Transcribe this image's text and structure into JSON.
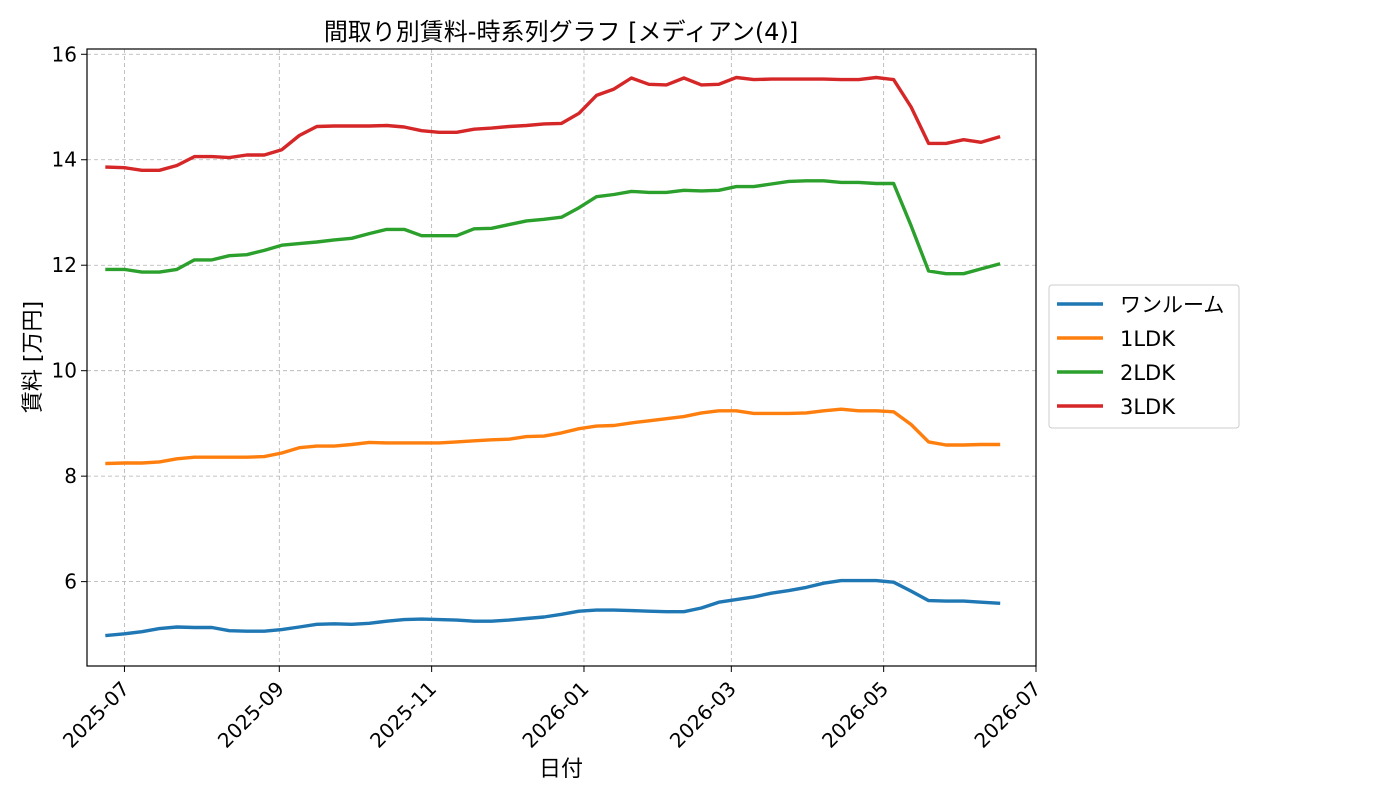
{
  "chart_data": {
    "type": "line",
    "title": "間取り別賃料-時系列グラフ [メディアン(4)]",
    "xlabel": "日付",
    "ylabel": "賃料 [万円]",
    "xlim": [
      "2025-06-16",
      "2026-07-01"
    ],
    "ylim": [
      4.4,
      16.1
    ],
    "xticks": [
      "2025-07",
      "2025-09",
      "2025-11",
      "2026-01",
      "2026-03",
      "2026-05",
      "2026-07"
    ],
    "yticks": [
      6,
      8,
      10,
      12,
      14,
      16
    ],
    "ytick_labels": [
      "6",
      "8",
      "10",
      "12",
      "14",
      "16"
    ],
    "grid": true,
    "legend_position": "right",
    "x": [
      "2025-06-24",
      "2025-07-01",
      "2025-07-08",
      "2025-07-15",
      "2025-07-22",
      "2025-07-29",
      "2025-08-05",
      "2025-08-12",
      "2025-08-19",
      "2025-08-26",
      "2025-09-02",
      "2025-09-09",
      "2025-09-16",
      "2025-09-23",
      "2025-09-30",
      "2025-10-07",
      "2025-10-14",
      "2025-10-21",
      "2025-10-28",
      "2025-11-04",
      "2025-11-11",
      "2025-11-18",
      "2025-11-25",
      "2025-12-02",
      "2025-12-09",
      "2025-12-16",
      "2025-12-23",
      "2025-12-30",
      "2026-01-06",
      "2026-01-13",
      "2026-01-20",
      "2026-01-27",
      "2026-02-03",
      "2026-02-10",
      "2026-02-17",
      "2026-02-24",
      "2026-03-03",
      "2026-03-10",
      "2026-03-17",
      "2026-03-24",
      "2026-03-31",
      "2026-04-07",
      "2026-04-14",
      "2026-04-21",
      "2026-04-28",
      "2026-05-05",
      "2026-05-12",
      "2026-05-19",
      "2026-05-26",
      "2026-06-02",
      "2026-06-09",
      "2026-06-16"
    ],
    "series": [
      {
        "name": "ワンルーム",
        "color": "#1f77b4",
        "values": [
          4.98,
          5.01,
          5.05,
          5.11,
          5.14,
          5.13,
          5.13,
          5.07,
          5.06,
          5.06,
          5.09,
          5.14,
          5.19,
          5.2,
          5.19,
          5.21,
          5.25,
          5.28,
          5.29,
          5.28,
          5.27,
          5.25,
          5.25,
          5.27,
          5.3,
          5.33,
          5.38,
          5.44,
          5.46,
          5.46,
          5.45,
          5.44,
          5.43,
          5.43,
          5.5,
          5.61,
          5.66,
          5.71,
          5.78,
          5.83,
          5.89,
          5.97,
          6.02,
          6.02,
          6.02,
          5.99,
          5.82,
          5.64,
          5.63,
          5.63,
          5.61,
          5.59
        ]
      },
      {
        "name": "1LDK",
        "color": "#ff7f0e",
        "values": [
          8.24,
          8.25,
          8.25,
          8.27,
          8.33,
          8.36,
          8.36,
          8.36,
          8.36,
          8.37,
          8.44,
          8.54,
          8.57,
          8.57,
          8.6,
          8.64,
          8.63,
          8.63,
          8.63,
          8.63,
          8.65,
          8.67,
          8.69,
          8.7,
          8.75,
          8.76,
          8.82,
          8.9,
          8.95,
          8.96,
          9.01,
          9.05,
          9.09,
          9.13,
          9.2,
          9.24,
          9.24,
          9.19,
          9.19,
          9.19,
          9.2,
          9.24,
          9.27,
          9.24,
          9.24,
          9.22,
          8.98,
          8.65,
          8.59,
          8.59,
          8.6,
          8.6
        ]
      },
      {
        "name": "2LDK",
        "color": "#2ca02c",
        "values": [
          11.92,
          11.92,
          11.87,
          11.87,
          11.92,
          12.1,
          12.1,
          12.18,
          12.2,
          12.28,
          12.38,
          12.41,
          12.44,
          12.48,
          12.51,
          12.6,
          12.68,
          12.68,
          12.56,
          12.56,
          12.56,
          12.69,
          12.7,
          12.77,
          12.84,
          12.87,
          12.91,
          13.09,
          13.3,
          13.34,
          13.4,
          13.38,
          13.38,
          13.42,
          13.41,
          13.42,
          13.49,
          13.49,
          13.54,
          13.59,
          13.6,
          13.6,
          13.57,
          13.57,
          13.55,
          13.55,
          12.75,
          11.89,
          11.84,
          11.84,
          11.93,
          12.02
        ]
      },
      {
        "name": "3LDK",
        "color": "#d62728",
        "values": [
          13.86,
          13.85,
          13.8,
          13.8,
          13.89,
          14.06,
          14.06,
          14.04,
          14.09,
          14.09,
          14.19,
          14.46,
          14.63,
          14.64,
          14.64,
          14.64,
          14.65,
          14.62,
          14.55,
          14.52,
          14.52,
          14.58,
          14.6,
          14.63,
          14.65,
          14.68,
          14.69,
          14.88,
          15.22,
          15.34,
          15.55,
          15.43,
          15.42,
          15.55,
          15.42,
          15.43,
          15.56,
          15.52,
          15.53,
          15.53,
          15.53,
          15.53,
          15.52,
          15.52,
          15.56,
          15.52,
          15.0,
          14.31,
          14.31,
          14.38,
          14.33,
          14.43
        ]
      }
    ]
  }
}
